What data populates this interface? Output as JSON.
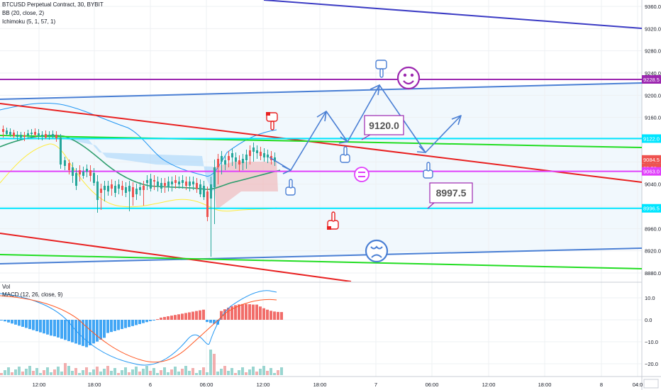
{
  "header": {
    "symbol_line": "BTCUSD Perpetual Contract, 30, BYBIT",
    "bb_label": "BB (20, close, 2)",
    "ichimoku_label": "Ichimoku (5, 1, 57, 1)"
  },
  "lower_pane": {
    "vol_label": "Vol",
    "macd_label": "MACD (12, 26, close, 9)"
  },
  "chart_data": [
    {
      "type": "candlestick",
      "pane": "price",
      "ylim": [
        8860,
        9380
      ],
      "yticks": [
        9360.0,
        9320.0,
        9280.0,
        9240.0,
        9200.0,
        9160.0,
        9120.0,
        9080.0,
        9040.0,
        9000.0,
        8960.0,
        8920.0,
        8880.0
      ],
      "ytick_labels": [
        "9360.0",
        "9320.0",
        "9280.0",
        "9240.0",
        "9200.0",
        "9160.0",
        "9120.0",
        "9080.0",
        "9040.0",
        "9000.0",
        "8960.0",
        "8920.0",
        "8880.0"
      ],
      "price_labels": [
        {
          "text": "9228.5",
          "value": 9228.5,
          "color": "#9c27b0"
        },
        {
          "text": "9122.0",
          "value": 9122.0,
          "color": "#00e5ff"
        },
        {
          "text": "9084.5",
          "value": 9084.5,
          "color": "#ef5350"
        },
        {
          "text": "28:58",
          "value": 9069.0,
          "color": "#ef5350"
        },
        {
          "text": "9063.0",
          "value": 9063.0,
          "color": "#e040fb"
        },
        {
          "text": "8996.5",
          "value": 8996.5,
          "color": "#00e5ff"
        }
      ],
      "callouts": [
        {
          "text": "9120.0",
          "value": 9120.0
        },
        {
          "text": "8997.5",
          "value": 8997.5
        }
      ],
      "horizontal_levels": [
        {
          "value": 9228.5,
          "color": "#9c27b0"
        },
        {
          "value": 9122.0,
          "color": "#00e5ff"
        },
        {
          "value": 9063.0,
          "color": "#e040fb"
        },
        {
          "value": 8996.5,
          "color": "#00e5ff"
        }
      ],
      "icons": [
        "pointing-down-hand-icon",
        "pointing-up-hand-icon",
        "smiley-face-icon",
        "neutral-face-icon",
        "sad-face-icon"
      ]
    },
    {
      "type": "bar",
      "pane": "macd",
      "ylim": [
        -25,
        17
      ],
      "yticks": [
        10.0,
        0.0,
        -10.0,
        -20.0
      ],
      "ytick_labels": [
        "10.0",
        "0.0",
        "−10.0",
        "−20.0"
      ]
    }
  ],
  "x_axis": {
    "ticks": [
      "12:00",
      "18:00",
      "6",
      "06:00",
      "12:00",
      "18:00",
      "7",
      "06:00",
      "12:00",
      "18:00",
      "8",
      "04:0"
    ]
  },
  "colors": {
    "up": "#26a69a",
    "down": "#ef5350",
    "purple": "#9c27b0",
    "cyan": "#00e5ff",
    "magenta": "#e040fb",
    "blue_trend": "#4a7fd4",
    "red_trend": "#e82020",
    "green_trend": "#22dd22",
    "navy_trend": "#3b3bc4"
  }
}
